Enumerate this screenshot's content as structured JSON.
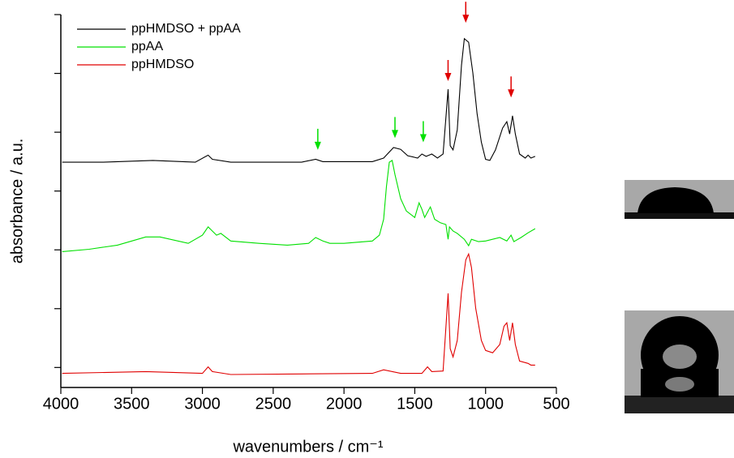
{
  "chart_data": {
    "type": "line",
    "xlabel": "wavenumbers / cm⁻¹",
    "ylabel": "absorbance / a.u.",
    "xlim": [
      4000,
      500
    ],
    "xticks": [
      4000,
      3500,
      3000,
      2500,
      2000,
      1500,
      1000,
      500
    ],
    "ylim": [
      -0.34,
      6
    ],
    "yticks": [
      0,
      1,
      2,
      3,
      4,
      5,
      6
    ],
    "legend": "upper left",
    "series": [
      {
        "name": "ppHMDSO + ppAA",
        "color": "#000000",
        "x": [
          3990,
          3700,
          3350,
          3050,
          2960,
          2930,
          2800,
          2300,
          2200,
          2150,
          1800,
          1720,
          1650,
          1600,
          1550,
          1480,
          1450,
          1420,
          1380,
          1340,
          1300,
          1265,
          1250,
          1230,
          1200,
          1170,
          1150,
          1120,
          1090,
          1060,
          1030,
          1000,
          970,
          930,
          880,
          850,
          830,
          810,
          790,
          760,
          720,
          700,
          680,
          650
        ],
        "values": [
          3.49,
          3.49,
          3.52,
          3.49,
          3.61,
          3.54,
          3.49,
          3.49,
          3.54,
          3.5,
          3.5,
          3.56,
          3.74,
          3.71,
          3.6,
          3.56,
          3.63,
          3.59,
          3.63,
          3.56,
          3.63,
          4.73,
          3.77,
          3.7,
          4.04,
          5.14,
          5.59,
          5.53,
          5.01,
          4.32,
          3.83,
          3.54,
          3.52,
          3.7,
          4.07,
          4.18,
          3.97,
          4.28,
          3.97,
          3.63,
          3.56,
          3.61,
          3.56,
          3.59
        ]
      },
      {
        "name": "ppAA",
        "color": "#00e000",
        "x": [
          3990,
          3800,
          3600,
          3400,
          3300,
          3100,
          3000,
          2960,
          2930,
          2900,
          2870,
          2800,
          2600,
          2400,
          2250,
          2200,
          2150,
          2100,
          2000,
          1800,
          1750,
          1720,
          1700,
          1680,
          1660,
          1640,
          1600,
          1560,
          1500,
          1470,
          1450,
          1430,
          1390,
          1360,
          1320,
          1280,
          1265,
          1255,
          1230,
          1200,
          1150,
          1120,
          1100,
          1050,
          1000,
          900,
          850,
          820,
          800,
          750,
          700,
          650
        ],
        "values": [
          1.97,
          2.01,
          2.08,
          2.22,
          2.22,
          2.11,
          2.25,
          2.39,
          2.32,
          2.25,
          2.28,
          2.15,
          2.11,
          2.08,
          2.11,
          2.21,
          2.15,
          2.11,
          2.11,
          2.15,
          2.25,
          2.52,
          3.08,
          3.49,
          3.52,
          3.28,
          2.87,
          2.66,
          2.55,
          2.8,
          2.69,
          2.55,
          2.73,
          2.52,
          2.46,
          2.43,
          2.18,
          2.39,
          2.32,
          2.28,
          2.18,
          2.07,
          2.18,
          2.14,
          2.15,
          2.21,
          2.15,
          2.25,
          2.14,
          2.21,
          2.29,
          2.36
        ]
      },
      {
        "name": "ppHMDSO",
        "color": "#e00000",
        "x": [
          3990,
          3400,
          3000,
          2960,
          2930,
          2800,
          2300,
          1800,
          1720,
          1600,
          1450,
          1410,
          1380,
          1300,
          1265,
          1250,
          1230,
          1200,
          1170,
          1140,
          1120,
          1100,
          1070,
          1030,
          1000,
          950,
          900,
          870,
          850,
          830,
          810,
          790,
          760,
          700,
          680,
          650
        ],
        "values": [
          -0.1,
          -0.07,
          -0.1,
          0.01,
          -0.07,
          -0.12,
          -0.11,
          -0.1,
          -0.04,
          -0.1,
          -0.1,
          0.01,
          -0.07,
          -0.06,
          1.26,
          0.32,
          0.18,
          0.46,
          1.28,
          1.83,
          1.93,
          1.7,
          1.01,
          0.46,
          0.29,
          0.25,
          0.39,
          0.7,
          0.76,
          0.46,
          0.76,
          0.39,
          0.11,
          0.07,
          0.04,
          0.04
        ]
      }
    ],
    "arrows": [
      {
        "x": 2185,
        "y": 3.7,
        "color": "#00e000"
      },
      {
        "x": 1640,
        "y": 3.9,
        "color": "#00e000"
      },
      {
        "x": 1440,
        "y": 3.83,
        "color": "#00e000"
      },
      {
        "x": 1265,
        "y": 4.87,
        "color": "#e00000"
      },
      {
        "x": 1140,
        "y": 5.86,
        "color": "#e00000"
      },
      {
        "x": 820,
        "y": 4.59,
        "color": "#e00000"
      }
    ]
  }
}
